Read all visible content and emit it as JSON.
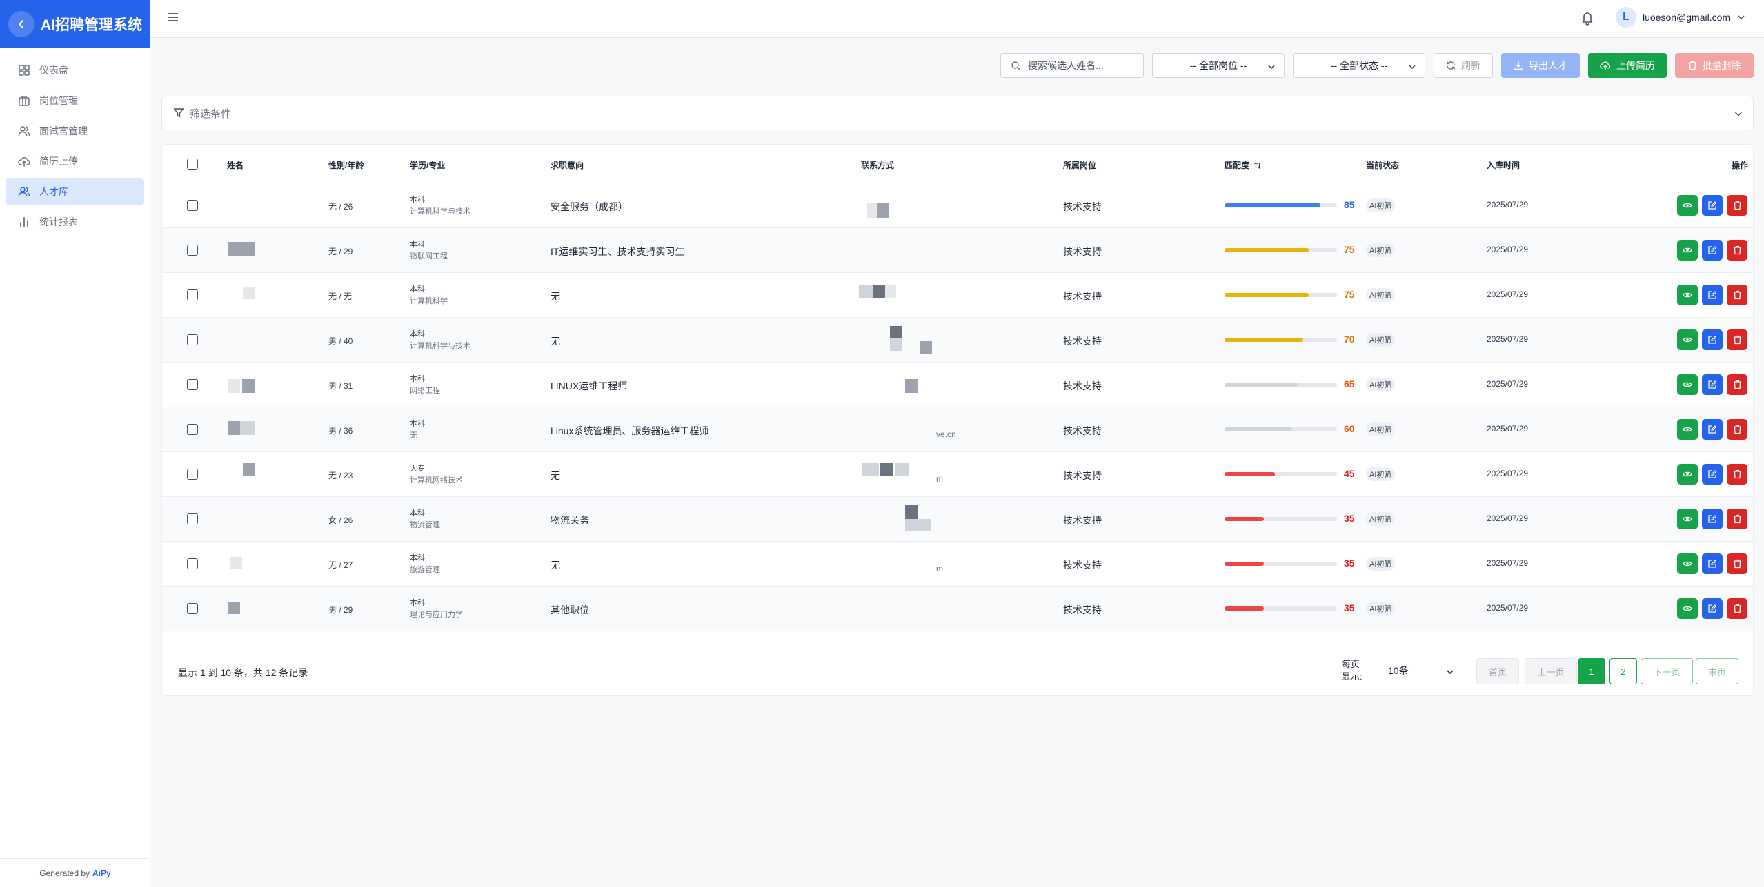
{
  "app": {
    "title": "AI招聘管理系统",
    "generated_by_prefix": "Generated by",
    "generated_by_brand": "AiPy"
  },
  "sidebar": {
    "items": [
      {
        "label": "仪表盘",
        "icon": "dashboard-icon"
      },
      {
        "label": "岗位管理",
        "icon": "briefcase-icon"
      },
      {
        "label": "面试官管理",
        "icon": "users-icon"
      },
      {
        "label": "简历上传",
        "icon": "cloud-upload-icon"
      },
      {
        "label": "人才库",
        "icon": "users-icon",
        "active": true
      },
      {
        "label": "统计报表",
        "icon": "bar-chart-icon"
      }
    ]
  },
  "header": {
    "user_initial": "L",
    "user_email": "luoeson@gmail.com"
  },
  "toolbar": {
    "search_placeholder": "搜索候选人姓名...",
    "position_select": "-- 全部岗位 --",
    "status_select": "-- 全部状态 --",
    "refresh_label": "刷新",
    "export_label": "导出人才",
    "upload_label": "上传简历",
    "delete_label": "批量删除"
  },
  "filter": {
    "label": "筛选条件"
  },
  "table": {
    "headers": {
      "name": "姓名",
      "gender_age": "性别/年龄",
      "education": "学历/专业",
      "intent": "求职意向",
      "contact": "联系方式",
      "position": "所属岗位",
      "match": "匹配度",
      "status": "当前状态",
      "date": "入库时间",
      "actions": "操作"
    },
    "rows": [
      {
        "gender_age": "无 / 26",
        "degree": "本科",
        "major": "计算机科学与技术",
        "intent": "安全服务（成都）",
        "contact_tail": "",
        "position": "技术支持",
        "match": 85,
        "status": "AI初筛",
        "date": "2025/07/29"
      },
      {
        "gender_age": "无 / 29",
        "degree": "本科",
        "major": "物联网工程",
        "intent": "IT运维实习生、技术支持实习生",
        "contact_tail": "",
        "position": "技术支持",
        "match": 75,
        "status": "AI初筛",
        "date": "2025/07/29"
      },
      {
        "gender_age": "无 / 无",
        "degree": "本科",
        "major": "计算机科学",
        "intent": "无",
        "contact_tail": "",
        "position": "技术支持",
        "match": 75,
        "status": "AI初筛",
        "date": "2025/07/29"
      },
      {
        "gender_age": "男 / 40",
        "degree": "本科",
        "major": "计算机科学与技术",
        "intent": "无",
        "contact_tail": "",
        "position": "技术支持",
        "match": 70,
        "status": "AI初筛",
        "date": "2025/07/29"
      },
      {
        "gender_age": "男 / 31",
        "degree": "本科",
        "major": "网络工程",
        "intent": "LINUX运维工程师",
        "contact_tail": "",
        "position": "技术支持",
        "match": 65,
        "status": "AI初筛",
        "date": "2025/07/29"
      },
      {
        "gender_age": "男 / 36",
        "degree": "本科",
        "major": "无",
        "intent": "Linux系统管理员、服务器运维工程师",
        "contact_tail": "ve.cn",
        "position": "技术支持",
        "match": 60,
        "status": "AI初筛",
        "date": "2025/07/29"
      },
      {
        "gender_age": "无 / 23",
        "degree": "大专",
        "major": "计算机网络技术",
        "intent": "无",
        "contact_tail": "m",
        "position": "技术支持",
        "match": 45,
        "status": "AI初筛",
        "date": "2025/07/29"
      },
      {
        "gender_age": "女 / 26",
        "degree": "本科",
        "major": "物流管理",
        "intent": "物流关务",
        "contact_tail": "",
        "position": "技术支持",
        "match": 35,
        "status": "AI初筛",
        "date": "2025/07/29"
      },
      {
        "gender_age": "无 / 27",
        "degree": "本科",
        "major": "旅游管理",
        "intent": "无",
        "contact_tail": "m",
        "position": "技术支持",
        "match": 35,
        "status": "AI初筛",
        "date": "2025/07/29"
      },
      {
        "gender_age": "男 / 29",
        "degree": "本科",
        "major": "理论与应用力学",
        "intent": "其他职位",
        "contact_tail": "",
        "position": "技术支持",
        "match": 35,
        "status": "AI初筛",
        "date": "2025/07/29"
      }
    ]
  },
  "pagination": {
    "summary": "显示 1 到 10 条，共 12 条记录",
    "per_page_label": "每页\n显示:",
    "per_page_value": "10条",
    "first": "首页",
    "prev": "上一页",
    "pages": [
      "1",
      "2"
    ],
    "next": "下一页",
    "last": "末页"
  },
  "colors": {
    "brand": "#2563eb",
    "success": "#16a34a",
    "danger": "#dc2626",
    "match_high": "#3b82f6",
    "match_mid": "#eab308",
    "match_low": "#ef4444"
  }
}
